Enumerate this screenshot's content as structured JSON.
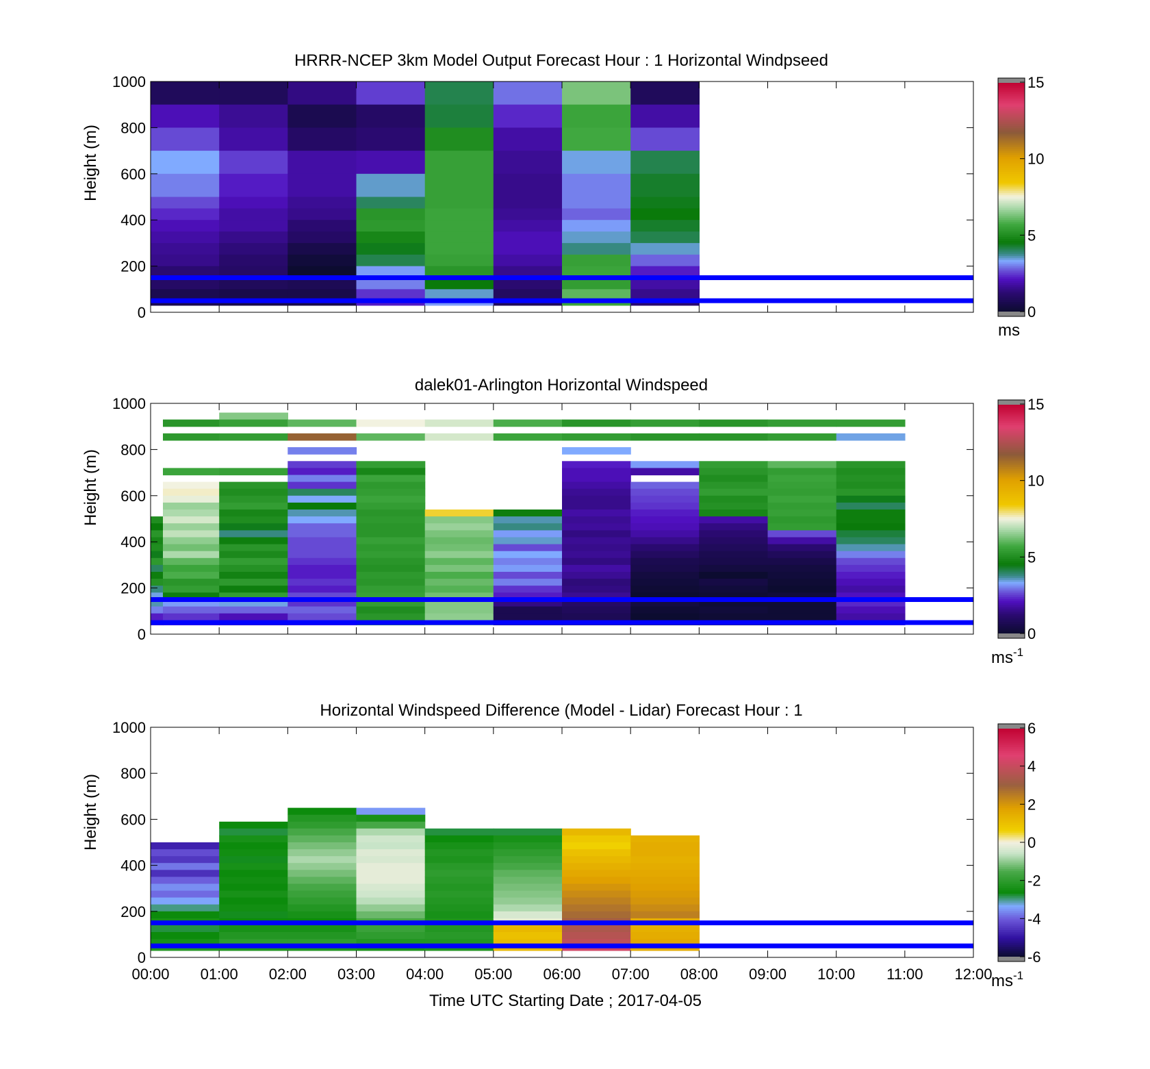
{
  "chart_data": [
    {
      "type": "heatmap",
      "title": "HRRR-NCEP 3km Model Output   Forecast Hour : 1 Horizontal Windpseed",
      "xlabel": "",
      "ylabel": "Height (m)",
      "colorbar_label": "ms",
      "colorbar_exp": "",
      "colorbar_range": [
        0,
        15
      ],
      "colorbar_ticks": [
        "0",
        "5",
        "10",
        "15"
      ],
      "ylim": [
        0,
        1000
      ],
      "yticks": [
        "0",
        "200",
        "400",
        "600",
        "800",
        "1000"
      ],
      "xlim": [
        0,
        12
      ],
      "hlines_m": [
        150,
        50
      ],
      "bins_top_m": [
        1000,
        900,
        800,
        700,
        600,
        500,
        450,
        400,
        350,
        300,
        250,
        200,
        150,
        100,
        50,
        30
      ],
      "columns": [
        {
          "hour": 0,
          "values": [
            0.8,
            2.0,
            2.6,
            3.3,
            3.0,
            2.6,
            2.3,
            2.0,
            1.8,
            1.6,
            1.5,
            1.2,
            1.0,
            0.6,
            0.6
          ]
        },
        {
          "hour": 1,
          "values": [
            0.8,
            1.6,
            1.8,
            2.5,
            2.2,
            2.0,
            1.8,
            1.8,
            1.5,
            1.3,
            1.1,
            1.0,
            0.8,
            0.5,
            0.5
          ]
        },
        {
          "hour": 2,
          "values": [
            1.4,
            0.6,
            1.0,
            1.8,
            1.8,
            1.6,
            1.5,
            1.2,
            1.0,
            0.5,
            0.2,
            0.0,
            0.7,
            0.5,
            0.5
          ]
        },
        {
          "hour": 3,
          "values": [
            2.5,
            1.0,
            1.2,
            1.9,
            3.5,
            4.0,
            5.2,
            5.3,
            4.8,
            4.4,
            4.1,
            3.2,
            3.0,
            2.4,
            2.2
          ]
        },
        {
          "hour": 4,
          "values": [
            4.1,
            4.2,
            5.0,
            5.5,
            5.5,
            5.5,
            5.6,
            5.6,
            5.6,
            5.6,
            5.5,
            5.2,
            4.5,
            3.5,
            3.2
          ]
        },
        {
          "hour": 5,
          "values": [
            2.9,
            2.3,
            1.8,
            1.6,
            1.5,
            1.5,
            1.6,
            1.8,
            2.0,
            2.0,
            1.8,
            1.5,
            1.2,
            0.9,
            0.8
          ]
        },
        {
          "hour": 6,
          "values": [
            6.3,
            5.6,
            5.7,
            3.4,
            3.0,
            3.0,
            2.8,
            3.2,
            3.5,
            3.8,
            5.5,
            5.6,
            5.4,
            6.0,
            5.6
          ]
        },
        {
          "hour": 7,
          "values": [
            0.8,
            1.8,
            2.6,
            4.1,
            4.3,
            4.4,
            4.5,
            4.3,
            4.1,
            3.5,
            2.8,
            2.2,
            1.8,
            1.5,
            1.2
          ]
        }
      ]
    },
    {
      "type": "heatmap",
      "title": "dalek01-Arlington  Horizontal Windspeed",
      "xlabel": "",
      "ylabel": "Height (m)",
      "colorbar_label": "ms",
      "colorbar_exp": "-1",
      "colorbar_range": [
        0,
        15
      ],
      "colorbar_ticks": [
        "0",
        "5",
        "10",
        "15"
      ],
      "ylim": [
        0,
        1000
      ],
      "yticks": [
        "0",
        "200",
        "400",
        "600",
        "800",
        "1000"
      ],
      "xlim": [
        0,
        12
      ],
      "hlines_m": [
        150,
        50
      ],
      "bins_top_m": [
        1000,
        960,
        930,
        900,
        870,
        840,
        810,
        780,
        750,
        720,
        690,
        660,
        630,
        600,
        570,
        540,
        510,
        480,
        450,
        420,
        390,
        360,
        330,
        300,
        270,
        240,
        210,
        180,
        150,
        120,
        90,
        60,
        40
      ],
      "columns": [
        {
          "hour": 0,
          "values": [
            null,
            null,
            null,
            null,
            null,
            null,
            null,
            null,
            null,
            null,
            null,
            null,
            null,
            null,
            null,
            null,
            5.0,
            4.5,
            5.2,
            4.8,
            5.0,
            4.4,
            5.3,
            4.0,
            4.6,
            5.1,
            3.8,
            3.4,
            3.6,
            3.0,
            2.2,
            2.0
          ]
        },
        {
          "hour": 0.18,
          "values": [
            null,
            null,
            5.2,
            null,
            5.3,
            null,
            null,
            null,
            null,
            5.6,
            null,
            7.5,
            7.6,
            7.4,
            6.6,
            6.8,
            7.2,
            6.6,
            7.0,
            6.5,
            6.2,
            6.8,
            6.0,
            5.6,
            5.8,
            5.2,
            5.4,
            4.6,
            3.2,
            2.8,
            2.4,
            2.2
          ]
        },
        {
          "hour": 1,
          "values": [
            null,
            6.4,
            5.5,
            null,
            5.4,
            null,
            null,
            null,
            null,
            5.5,
            null,
            5.2,
            5.0,
            5.2,
            5.4,
            4.8,
            5.0,
            4.4,
            3.8,
            4.6,
            5.2,
            4.9,
            5.4,
            5.1,
            4.7,
            5.3,
            4.6,
            5.4,
            3.4,
            2.8,
            2.0,
            1.8
          ]
        },
        {
          "hour": 2,
          "values": [
            null,
            null,
            6.0,
            null,
            11.5,
            null,
            3.0,
            null,
            2.5,
            2.2,
            3.0,
            2.4,
            4.0,
            3.3,
            4.5,
            3.6,
            3.3,
            2.8,
            2.8,
            2.6,
            2.6,
            2.6,
            2.4,
            2.2,
            2.2,
            2.4,
            2.2,
            2.6,
            2.4,
            2.8,
            2.6,
            2.3
          ]
        },
        {
          "hour": 3,
          "values": [
            null,
            null,
            7.5,
            null,
            6.0,
            null,
            null,
            null,
            5.4,
            4.8,
            5.6,
            5.3,
            5.4,
            5.6,
            5.4,
            5.2,
            5.3,
            5.2,
            5.2,
            5.5,
            5.3,
            5.4,
            5.2,
            5.1,
            5.3,
            5.2,
            5.4,
            5.5,
            5.4,
            5.0,
            5.2,
            5.3
          ]
        },
        {
          "hour": 4,
          "values": [
            null,
            null,
            7.2,
            null,
            7.2,
            null,
            null,
            null,
            null,
            null,
            null,
            null,
            null,
            null,
            null,
            8.2,
            6.4,
            6.6,
            6.3,
            6.1,
            6.2,
            6.5,
            6.0,
            6.3,
            5.8,
            6.1,
            5.9,
            6.2,
            6.4,
            6.4,
            6.5,
            6.3
          ]
        },
        {
          "hour": 5,
          "values": [
            null,
            null,
            5.8,
            null,
            5.6,
            null,
            null,
            null,
            null,
            null,
            null,
            null,
            null,
            null,
            null,
            4.6,
            3.6,
            3.8,
            3.2,
            3.5,
            2.6,
            3.3,
            3.0,
            3.2,
            2.6,
            3.0,
            2.4,
            2.2,
            1.4,
            0.6,
            0.6,
            0.8
          ]
        },
        {
          "hour": 6,
          "values": [
            null,
            null,
            5.2,
            null,
            5.4,
            null,
            3.3,
            null,
            2.2,
            2.0,
            2.0,
            1.8,
            1.6,
            1.5,
            1.5,
            1.8,
            1.6,
            1.7,
            1.4,
            1.6,
            1.5,
            1.6,
            1.4,
            1.8,
            1.6,
            1.3,
            1.4,
            1.6,
            1.0,
            0.8,
            0.7,
            0.6
          ]
        },
        {
          "hour": 7,
          "values": [
            null,
            null,
            5.4,
            null,
            5.2,
            null,
            null,
            null,
            3.2,
            1.8,
            null,
            2.8,
            2.6,
            2.5,
            2.4,
            2.2,
            2.1,
            2.0,
            1.8,
            1.5,
            1.2,
            0.9,
            0.6,
            0.5,
            0.3,
            0.2,
            0.1,
            0.0,
            0.3,
            0.1,
            0.0,
            0.0
          ]
        },
        {
          "hour": 8,
          "values": [
            null,
            null,
            5.2,
            null,
            5.2,
            null,
            null,
            null,
            5.4,
            5.2,
            5.0,
            5.2,
            5.4,
            5.0,
            5.1,
            4.8,
            1.8,
            1.4,
            1.2,
            1.0,
            0.8,
            0.6,
            0.5,
            0.3,
            0.0,
            0.4,
            0.2,
            0.1,
            0.1,
            0.2,
            0.1,
            0.1
          ]
        },
        {
          "hour": 9,
          "values": [
            null,
            null,
            5.4,
            null,
            5.4,
            null,
            null,
            null,
            6.0,
            5.4,
            5.6,
            5.5,
            5.4,
            5.6,
            5.4,
            5.5,
            5.3,
            5.4,
            2.6,
            1.8,
            1.2,
            0.8,
            0.5,
            0.3,
            0.2,
            0.1,
            0.0,
            0.2,
            0.1,
            0.1,
            0.1,
            0.1
          ]
        },
        {
          "hour": 10,
          "values": [
            null,
            null,
            5.4,
            null,
            3.4,
            null,
            null,
            null,
            5.2,
            5.0,
            5.1,
            5.0,
            5.2,
            4.4,
            4.0,
            4.6,
            4.6,
            4.5,
            4.2,
            4.0,
            3.6,
            3.0,
            2.6,
            2.4,
            2.2,
            2.0,
            1.8,
            2.1,
            2.3,
            2.0,
            1.8,
            2.2
          ]
        }
      ]
    },
    {
      "type": "heatmap",
      "title": "Horizontal Windspeed Difference (Model - Lidar) Forecast Hour : 1",
      "xlabel": "Time UTC  Starting Date ; 2017-04-05",
      "ylabel": "Height (m)",
      "colorbar_label": "ms",
      "colorbar_exp": "-1",
      "colorbar_range": [
        -6,
        6
      ],
      "colorbar_ticks": [
        "-6",
        "-4",
        "-2",
        "0",
        "2",
        "4",
        "6"
      ],
      "ylim": [
        0,
        1000
      ],
      "yticks": [
        "0",
        "200",
        "400",
        "600",
        "800",
        "1000"
      ],
      "xlim": [
        0,
        12
      ],
      "xticks": [
        "00:00",
        "01:00",
        "02:00",
        "03:00",
        "04:00",
        "05:00",
        "06:00",
        "07:00",
        "08:00",
        "09:00",
        "10:00",
        "11:00",
        "12:00"
      ],
      "hlines_m": [
        150,
        50
      ],
      "bins_top_m": [
        650,
        620,
        590,
        560,
        530,
        500,
        470,
        440,
        410,
        380,
        350,
        320,
        290,
        260,
        230,
        200,
        170,
        140,
        110,
        80,
        50,
        30
      ],
      "columns": [
        {
          "hour": 0,
          "values": [
            null,
            null,
            null,
            null,
            null,
            -4.8,
            -4.2,
            -4.5,
            -3.8,
            -4.6,
            -4.0,
            -3.6,
            -3.9,
            -3.4,
            -3.0,
            -2.6,
            -2.4,
            -2.8,
            -2.6,
            -2.4,
            -2.2
          ]
        },
        {
          "hour": 1,
          "values": [
            null,
            null,
            -2.6,
            -2.8,
            -2.4,
            -2.6,
            -2.5,
            -2.7,
            -2.4,
            -2.6,
            -2.5,
            -2.6,
            -2.4,
            -2.6,
            -2.5,
            -2.7,
            -2.6,
            -2.4,
            -2.2,
            -2.0,
            -2.3
          ]
        },
        {
          "hour": 2,
          "values": [
            -2.6,
            -2.2,
            -2.0,
            -1.6,
            -1.4,
            -1.2,
            -1.0,
            -0.8,
            -1.0,
            -1.2,
            -1.4,
            -1.6,
            -1.8,
            -2.0,
            -2.2,
            -2.4,
            -2.6,
            -2.4,
            -2.2,
            -2.0,
            -2.3
          ]
        },
        {
          "hour": 3,
          "values": [
            -3.5,
            -2.4,
            -1.6,
            -0.8,
            -0.5,
            -0.6,
            -0.3,
            -0.4,
            -0.2,
            -0.2,
            -0.2,
            -0.4,
            -0.5,
            -0.7,
            -1.0,
            -1.3,
            -1.6,
            -1.8,
            -2.0,
            -2.2,
            -2.4
          ]
        },
        {
          "hour": 4,
          "values": [
            null,
            null,
            null,
            -2.8,
            -2.6,
            -2.4,
            -2.2,
            -2.3,
            -2.1,
            -2.0,
            -2.1,
            -2.2,
            -2.1,
            -2.2,
            -2.3,
            -2.4,
            -2.3,
            -2.2,
            -2.1,
            -2.2,
            -2.3
          ]
        },
        {
          "hour": 5,
          "values": [
            null,
            null,
            null,
            -2.8,
            -2.4,
            -2.2,
            -2.0,
            -1.8,
            -1.6,
            -1.4,
            -1.3,
            -1.2,
            -1.1,
            -1.0,
            -0.8,
            -0.4,
            -0.2,
            1.2,
            1.0,
            1.1,
            1.2
          ]
        },
        {
          "hour": 6,
          "values": [
            null,
            null,
            null,
            1.2,
            0.8,
            0.6,
            1.0,
            1.2,
            1.4,
            1.6,
            1.8,
            2.0,
            2.2,
            2.4,
            2.6,
            2.8,
            3.2,
            3.4,
            3.6,
            3.8,
            4.2
          ]
        },
        {
          "hour": 7,
          "values": [
            null,
            null,
            null,
            null,
            1.4,
            1.5,
            1.5,
            1.4,
            1.5,
            1.6,
            1.7,
            1.8,
            1.9,
            2.0,
            2.2,
            2.4,
            1.5,
            1.4,
            1.5,
            1.6,
            1.5
          ]
        }
      ]
    }
  ]
}
